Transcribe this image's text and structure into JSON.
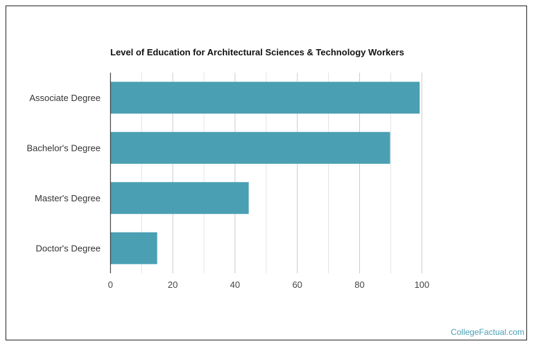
{
  "chart_data": {
    "type": "bar",
    "orientation": "horizontal",
    "title": "Level of Education for Architectural Sciences & Technology Workers",
    "categories": [
      "Associate Degree",
      "Bachelor's Degree",
      "Master's Degree",
      "Doctor's Degree"
    ],
    "values": [
      99.3,
      89.8,
      44.4,
      15.0
    ],
    "xlabel": "",
    "ylabel": "",
    "xlim": [
      0,
      100
    ],
    "xticks": [
      "0",
      "20",
      "40",
      "60",
      "80",
      "100"
    ],
    "grid": true,
    "bar_color": "#4a9fb3"
  },
  "credit": "CollegeFactual.com"
}
